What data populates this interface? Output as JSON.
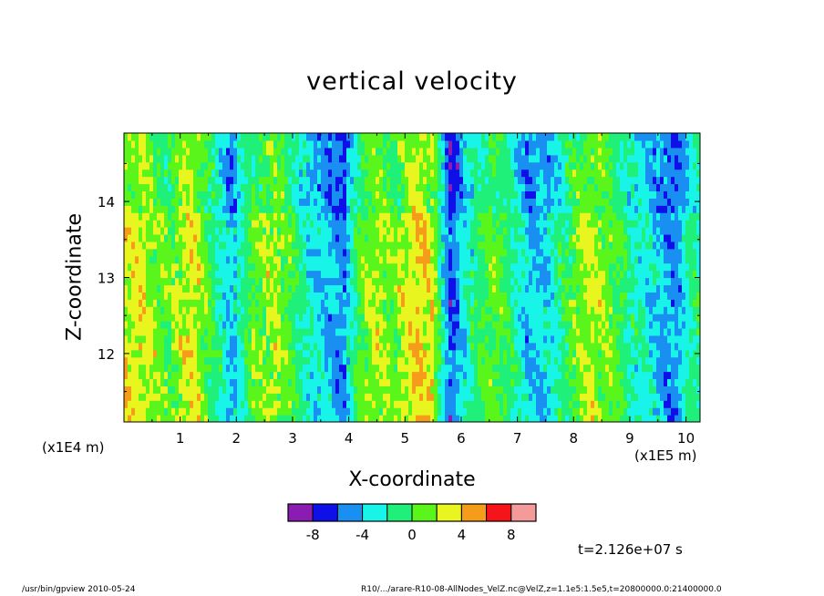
{
  "chart_data": {
    "type": "heatmap",
    "title": "vertical velocity",
    "xlabel": "X-coordinate",
    "ylabel": "Z-coordinate",
    "x_unit_label": "(x1E5 m)",
    "y_unit_label": "(x1E4 m)",
    "xlim": [
      0,
      10.25
    ],
    "ylim": [
      11.1,
      14.9
    ],
    "x_ticks": [
      "1",
      "2",
      "3",
      "4",
      "5",
      "6",
      "7",
      "8",
      "9",
      "10"
    ],
    "y_ticks": [
      "12",
      "13",
      "14"
    ],
    "colorbar": {
      "levels": [
        -10,
        -8,
        -6,
        -4,
        -2,
        0,
        2,
        4,
        6,
        8,
        10
      ],
      "tick_labels": [
        "-8",
        "-4",
        "0",
        "4",
        "8"
      ],
      "colors": [
        "#8a1cb2",
        "#0f10e8",
        "#1a8ff2",
        "#18f5e8",
        "#1ef07a",
        "#5af51a",
        "#e8f51e",
        "#f59c1a",
        "#f5141a",
        "#f59a9a"
      ]
    },
    "column_profile": [
      {
        "x": 0.3,
        "v": 3.2
      },
      {
        "x": 0.8,
        "v": 0.5
      },
      {
        "x": 1.2,
        "v": 3.8
      },
      {
        "x": 1.7,
        "v": -2.0
      },
      {
        "x": 1.9,
        "v": -4.6
      },
      {
        "x": 2.3,
        "v": 0.8
      },
      {
        "x": 2.7,
        "v": 2.4
      },
      {
        "x": 3.0,
        "v": 0.0
      },
      {
        "x": 3.3,
        "v": -3.2
      },
      {
        "x": 3.6,
        "v": -4.2
      },
      {
        "x": 3.9,
        "v": -6.0
      },
      {
        "x": 4.2,
        "v": 0.6
      },
      {
        "x": 4.5,
        "v": 2.5
      },
      {
        "x": 4.8,
        "v": 1.0
      },
      {
        "x": 5.2,
        "v": 4.2
      },
      {
        "x": 5.5,
        "v": 3.0
      },
      {
        "x": 5.8,
        "v": -7.0
      },
      {
        "x": 6.1,
        "v": -2.4
      },
      {
        "x": 6.5,
        "v": 0.8
      },
      {
        "x": 6.8,
        "v": 0.0
      },
      {
        "x": 7.2,
        "v": -4.6
      },
      {
        "x": 7.6,
        "v": -3.4
      },
      {
        "x": 8.0,
        "v": 0.9
      },
      {
        "x": 8.3,
        "v": 2.6
      },
      {
        "x": 8.7,
        "v": 1.0
      },
      {
        "x": 9.1,
        "v": -2.5
      },
      {
        "x": 9.4,
        "v": -3.4
      },
      {
        "x": 9.8,
        "v": -5.8
      },
      {
        "x": 10.1,
        "v": -1.5
      }
    ],
    "grid": false
  },
  "time_label": "t=2.126e+07 s",
  "footer_left": "/usr/bin/gpview   2010-05-24",
  "footer_right": "R10/.../arare-R10-08-AllNodes_VelZ.nc@VelZ,z=1.1e5:1.5e5,t=20800000.0:21400000.0"
}
